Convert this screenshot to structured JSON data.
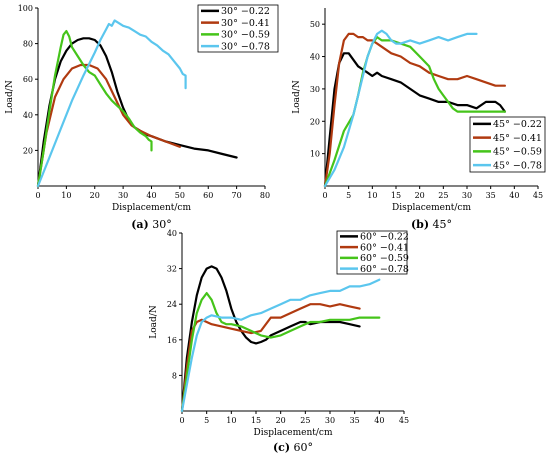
{
  "chart_data": [
    {
      "type": "line",
      "caption_letter": "(a)",
      "caption_text": " 30°",
      "xlabel": "Displacement/cm",
      "ylabel": "Load/N",
      "xlim": [
        0,
        80
      ],
      "ylim": [
        0,
        100
      ],
      "xticks": [
        "0",
        "10",
        "20",
        "30",
        "40",
        "50",
        "60",
        "70",
        "80"
      ],
      "yticks": [
        "20",
        "40",
        "60",
        "80",
        "100"
      ],
      "legend_position": "top-right",
      "series": [
        {
          "name": "30° −0.22",
          "color": "#000000",
          "x": [
            0,
            2,
            4,
            6,
            8,
            10,
            12,
            14,
            16,
            18,
            20,
            22,
            24,
            26,
            28,
            30,
            32,
            34,
            36,
            38,
            40,
            45,
            50,
            55,
            60,
            65,
            70
          ],
          "y": [
            0,
            25,
            45,
            60,
            70,
            76,
            80,
            82,
            83,
            83,
            82,
            79,
            73,
            64,
            53,
            44,
            37,
            33,
            31,
            29,
            28,
            25,
            23,
            21,
            20,
            18,
            16
          ]
        },
        {
          "name": "30° −0.41",
          "color": "#b03a10",
          "x": [
            0,
            3,
            6,
            9,
            12,
            15,
            18,
            21,
            24,
            27,
            30,
            33,
            36,
            40,
            45,
            50
          ],
          "y": [
            0,
            30,
            50,
            60,
            66,
            68,
            68,
            66,
            60,
            50,
            40,
            34,
            31,
            28,
            25,
            22
          ]
        },
        {
          "name": "30° −0.59",
          "color": "#45c41a",
          "x": [
            0,
            2,
            4,
            6,
            8,
            9,
            10,
            11,
            12,
            14,
            16,
            18,
            20,
            22,
            24,
            26,
            28,
            30,
            32,
            34,
            36,
            38,
            39,
            40,
            40
          ],
          "y": [
            0,
            20,
            42,
            62,
            78,
            85,
            87,
            84,
            78,
            73,
            68,
            64,
            62,
            57,
            52,
            48,
            45,
            42,
            38,
            33,
            30,
            28,
            26,
            25,
            20
          ]
        },
        {
          "name": "30° −0.78",
          "color": "#5bc6ee",
          "x": [
            0,
            4,
            8,
            12,
            16,
            20,
            22,
            24,
            25,
            26,
            27,
            28,
            30,
            32,
            34,
            36,
            38,
            40,
            42,
            44,
            46,
            48,
            50,
            51,
            52,
            52
          ],
          "y": [
            0,
            16,
            32,
            48,
            62,
            75,
            82,
            88,
            91,
            90,
            93,
            92,
            90,
            89,
            87,
            85,
            84,
            81,
            79,
            76,
            74,
            70,
            66,
            63,
            62,
            55
          ]
        }
      ]
    },
    {
      "type": "line",
      "caption_letter": "(b)",
      "caption_text": " 45°",
      "xlabel": "Displacement/cm",
      "ylabel": "Load/N",
      "xlim": [
        0,
        45
      ],
      "ylim": [
        0,
        55
      ],
      "xticks": [
        "0",
        "5",
        "10",
        "15",
        "20",
        "25",
        "30",
        "35",
        "40",
        "45"
      ],
      "yticks": [
        "10",
        "20",
        "30",
        "40",
        "50"
      ],
      "legend_position": "bottom-right",
      "series": [
        {
          "name": "45° −0.22",
          "color": "#000000",
          "x": [
            0,
            1,
            2,
            3,
            4,
            5,
            6,
            7,
            8,
            9,
            10,
            11,
            12,
            14,
            16,
            18,
            20,
            22,
            24,
            26,
            28,
            30,
            32,
            34,
            35,
            36,
            37,
            38
          ],
          "y": [
            0,
            15,
            30,
            38,
            41,
            41,
            39,
            37,
            36,
            35,
            34,
            35,
            34,
            33,
            32,
            30,
            28,
            27,
            26,
            26,
            25,
            25,
            24,
            26,
            26,
            26,
            25,
            23
          ]
        },
        {
          "name": "45° −0.41",
          "color": "#b03a10",
          "x": [
            0,
            1,
            2,
            3,
            4,
            5,
            6,
            7,
            8,
            9,
            10,
            11,
            12,
            14,
            16,
            18,
            20,
            22,
            24,
            26,
            28,
            30,
            32,
            34,
            36,
            38
          ],
          "y": [
            0,
            10,
            25,
            38,
            45,
            47,
            47,
            46,
            46,
            45,
            45,
            44,
            43,
            41,
            40,
            38,
            37,
            35,
            34,
            33,
            33,
            34,
            33,
            32,
            31,
            31
          ]
        },
        {
          "name": "45° −0.59",
          "color": "#45c41a",
          "x": [
            0,
            2,
            4,
            6,
            7,
            8,
            9,
            10,
            11,
            12,
            14,
            16,
            18,
            20,
            22,
            23,
            24,
            25,
            26,
            27,
            28,
            30,
            32,
            34,
            36,
            38
          ],
          "y": [
            0,
            8,
            17,
            22,
            28,
            35,
            40,
            44,
            46,
            45,
            45,
            44,
            43,
            40,
            37,
            33,
            30,
            28,
            26,
            24,
            23,
            23,
            23,
            23,
            23,
            23
          ]
        },
        {
          "name": "45° −0.78",
          "color": "#5bc6ee",
          "x": [
            0,
            2,
            4,
            6,
            8,
            9,
            10,
            11,
            12,
            13,
            14,
            15,
            16,
            18,
            20,
            22,
            24,
            26,
            28,
            30,
            31,
            32
          ],
          "y": [
            0,
            5,
            12,
            22,
            34,
            40,
            44,
            47,
            48,
            47,
            45,
            44,
            44,
            45,
            44,
            45,
            46,
            45,
            46,
            47,
            47,
            47
          ]
        }
      ]
    },
    {
      "type": "line",
      "caption_letter": "(c)",
      "caption_text": " 60°",
      "xlabel": "Displacement/cm",
      "ylabel": "Load/N",
      "xlim": [
        0,
        45
      ],
      "ylim": [
        0,
        40
      ],
      "xticks": [
        "0",
        "5",
        "10",
        "15",
        "20",
        "25",
        "30",
        "35",
        "40",
        "45"
      ],
      "yticks": [
        "8",
        "16",
        "24",
        "32",
        "40"
      ],
      "legend_position": "top-right",
      "series": [
        {
          "name": "60° −0.22",
          "color": "#000000",
          "x": [
            0,
            1,
            2,
            3,
            4,
            5,
            6,
            7,
            8,
            9,
            10,
            11,
            12,
            13,
            14,
            15,
            16,
            17,
            18,
            20,
            22,
            24,
            25,
            26,
            28,
            30,
            32,
            34,
            36
          ],
          "y": [
            0,
            12,
            20,
            26,
            30,
            32,
            32.5,
            32,
            30,
            27,
            23,
            20,
            18,
            16.5,
            15.5,
            15.2,
            15.5,
            16,
            17,
            18,
            19,
            20,
            20,
            19.5,
            20,
            20,
            20,
            19.5,
            19
          ]
        },
        {
          "name": "60° −0.41",
          "color": "#b03a10",
          "x": [
            0,
            1,
            2,
            3,
            4,
            5,
            6,
            8,
            10,
            12,
            14,
            16,
            18,
            20,
            22,
            24,
            26,
            28,
            30,
            32,
            34,
            36
          ],
          "y": [
            0,
            10,
            18,
            20,
            20.5,
            20,
            19.5,
            19,
            18.5,
            18,
            17.5,
            18,
            21,
            21,
            22,
            23,
            24,
            24,
            23.5,
            24,
            23.5,
            23
          ]
        },
        {
          "name": "60° −0.59",
          "color": "#45c41a",
          "x": [
            0,
            1,
            2,
            3,
            4,
            5,
            6,
            7,
            8,
            9,
            10,
            12,
            14,
            16,
            18,
            20,
            22,
            24,
            26,
            28,
            30,
            32,
            34,
            36,
            38,
            40
          ],
          "y": [
            0,
            8,
            16,
            22,
            25,
            26.5,
            25,
            22,
            20,
            19.5,
            19.5,
            19,
            18,
            17,
            16.5,
            17,
            18,
            19,
            20,
            20,
            20.5,
            20.5,
            20.5,
            21,
            21,
            21
          ]
        },
        {
          "name": "60° −0.78",
          "color": "#5bc6ee",
          "x": [
            0,
            1,
            2,
            3,
            4,
            5,
            6,
            8,
            10,
            12,
            14,
            16,
            18,
            20,
            22,
            24,
            26,
            28,
            30,
            32,
            34,
            36,
            38,
            40
          ],
          "y": [
            0,
            6,
            12,
            17,
            20,
            21,
            21.5,
            21,
            21,
            20.5,
            21.5,
            22,
            23,
            24,
            25,
            25,
            26,
            26.5,
            27,
            27,
            28,
            28,
            28.5,
            29.5
          ]
        }
      ]
    }
  ]
}
